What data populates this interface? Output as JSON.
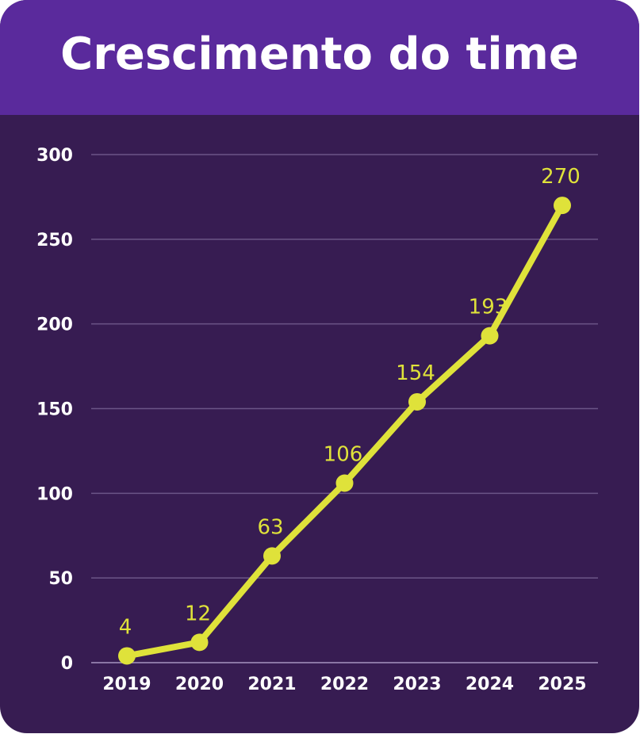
{
  "header": {
    "title": "Crescimento do time"
  },
  "colors": {
    "header_bg": "#5a2a9c",
    "panel_bg": "#371c52",
    "line": "#dfe23a",
    "grid": "#6b5587",
    "text": "#ffffff"
  },
  "chart_data": {
    "type": "line",
    "title": "Crescimento do time",
    "xlabel": "",
    "ylabel": "",
    "categories": [
      "2019",
      "2020",
      "2021",
      "2022",
      "2023",
      "2024",
      "2025"
    ],
    "values": [
      4,
      12,
      63,
      106,
      154,
      193,
      270
    ],
    "data_labels": [
      "4",
      "12",
      "63",
      "106",
      "154",
      "193",
      "270"
    ],
    "ylim": [
      0,
      300
    ],
    "yticks": [
      0,
      50,
      100,
      150,
      200,
      250,
      300
    ],
    "ytick_labels": [
      "0",
      "50",
      "100",
      "150",
      "200",
      "250",
      "300"
    ],
    "grid": true,
    "legend": "none"
  }
}
